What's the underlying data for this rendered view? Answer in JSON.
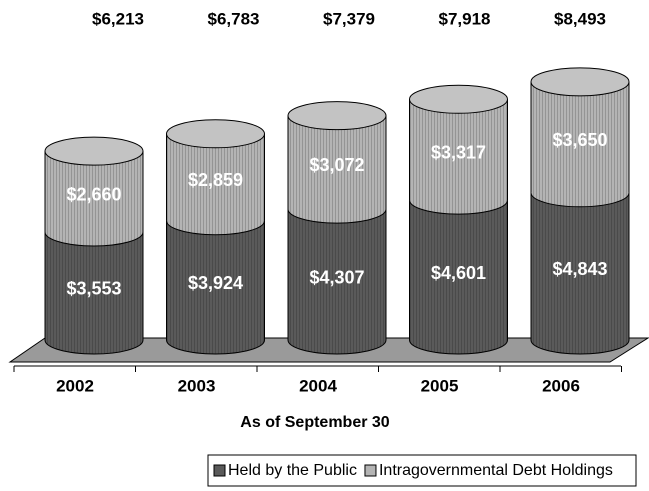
{
  "chart_data": {
    "type": "bar3d_stacked",
    "xlabel": "As of September 30",
    "categories": [
      "2002",
      "2003",
      "2004",
      "2005",
      "2006"
    ],
    "total_labels": [
      "$6,213",
      "$6,783",
      "$7,379",
      "$7,918",
      "$8,493"
    ],
    "series": [
      {
        "name": "Held by the Public",
        "color": "#5a5a5a",
        "values": [
          3553,
          3924,
          4307,
          4601,
          4843
        ],
        "value_labels": [
          "$3,553",
          "$3,924",
          "$4,307",
          "$4,601",
          "$4,843"
        ]
      },
      {
        "name": "Intragovernmental Debt Holdings",
        "color": "#b4b4b4",
        "values": [
          2660,
          2859,
          3072,
          3317,
          3650
        ],
        "value_labels": [
          "$2,660",
          "$2,859",
          "$3,072",
          "$3,317",
          "$3,650"
        ]
      }
    ],
    "ylim": [
      0,
      10000
    ]
  }
}
